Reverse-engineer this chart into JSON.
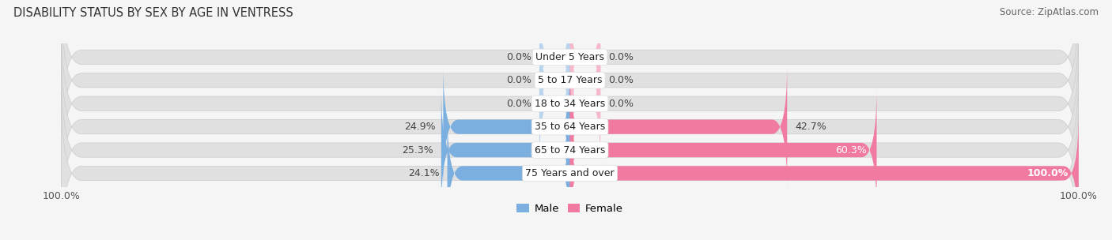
{
  "title": "Disability Status by Sex by Age in Ventress",
  "title_display": "DISABILITY STATUS BY SEX BY AGE IN VENTRESS",
  "source": "Source: ZipAtlas.com",
  "categories": [
    "Under 5 Years",
    "5 to 17 Years",
    "18 to 34 Years",
    "35 to 64 Years",
    "65 to 74 Years",
    "75 Years and over"
  ],
  "male_values": [
    0.0,
    0.0,
    0.0,
    24.9,
    25.3,
    24.1
  ],
  "female_values": [
    0.0,
    0.0,
    0.0,
    42.7,
    60.3,
    100.0
  ],
  "male_color": "#7aafe0",
  "female_color": "#f07aa0",
  "male_color_light": "#b8d4ee",
  "female_color_light": "#f7b8cc",
  "bar_bg_color": "#e0e0e0",
  "bar_bg_light": "#ebebeb",
  "fig_bg": "#f5f5f5",
  "bar_height": 0.62,
  "xlim": 100.0,
  "zero_bar_size": 6.0,
  "male_labels": [
    "0.0%",
    "0.0%",
    "0.0%",
    "24.9%",
    "25.3%",
    "24.1%"
  ],
  "female_labels": [
    "0.0%",
    "0.0%",
    "0.0%",
    "42.7%",
    "60.3%",
    "100.0%"
  ],
  "title_fontsize": 10.5,
  "label_fontsize": 9,
  "value_fontsize": 9,
  "source_fontsize": 8.5,
  "legend_fontsize": 9.5,
  "cat_fontsize": 9
}
